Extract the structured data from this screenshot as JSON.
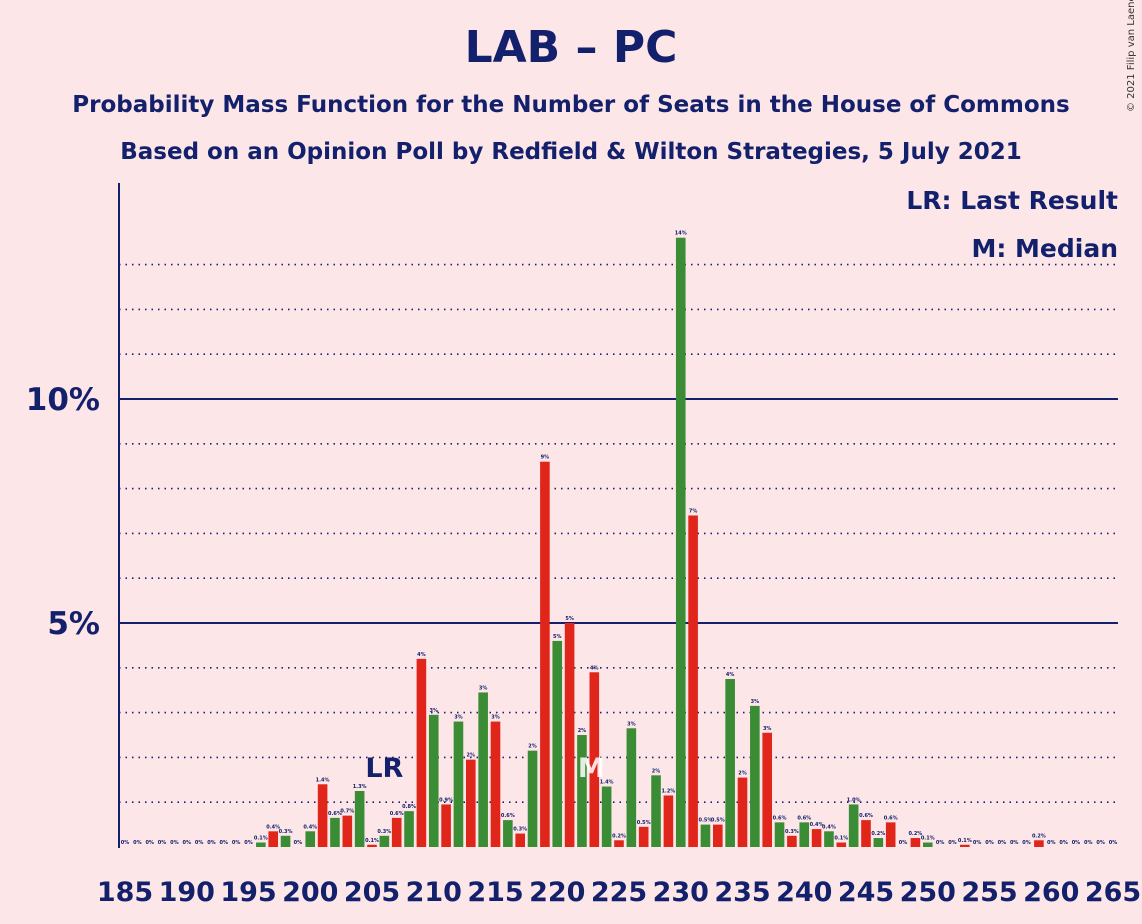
{
  "title": "LAB – PC",
  "subtitle_1": "Probability Mass Function for the Number of Seats in the House of Commons",
  "subtitle_2": "Based on an Opinion Poll by Redfield & Wilton Strategies, 5 July 2021",
  "copyright": "© 2021 Filip van Laenen",
  "legend": {
    "last_result": "LR: Last Result",
    "median": "M: Median"
  },
  "colors": {
    "background": "#fde6e8",
    "text": "#13206b",
    "bar_red": "#e0251b",
    "bar_green": "#3a8c35"
  },
  "chart_data": {
    "type": "bar",
    "x": [
      185,
      186,
      187,
      188,
      189,
      190,
      191,
      192,
      193,
      194,
      195,
      196,
      197,
      198,
      199,
      200,
      201,
      202,
      203,
      204,
      205,
      206,
      207,
      208,
      209,
      210,
      211,
      212,
      213,
      214,
      215,
      216,
      217,
      218,
      219,
      220,
      221,
      222,
      223,
      224,
      225,
      226,
      227,
      228,
      229,
      230,
      231,
      232,
      233,
      234,
      235,
      236,
      237,
      238,
      239,
      240,
      241,
      242,
      243,
      244,
      245,
      246,
      247,
      248,
      249,
      250,
      251,
      252,
      253,
      254,
      255,
      256,
      257,
      258,
      259,
      260,
      261,
      262,
      263,
      264,
      265
    ],
    "values": [
      0,
      0,
      0,
      0,
      0,
      0,
      0,
      0,
      0,
      0,
      0,
      0.1,
      0.35,
      0.25,
      0,
      0.35,
      1.4,
      0.65,
      0.7,
      1.25,
      0.05,
      0.25,
      0.65,
      0.8,
      4.2,
      2.95,
      0.95,
      2.8,
      1.95,
      3.45,
      2.8,
      0.6,
      0.3,
      2.15,
      8.6,
      4.6,
      5.0,
      2.5,
      3.9,
      1.35,
      0.15,
      2.65,
      0.45,
      1.6,
      1.15,
      13.6,
      7.4,
      0.5,
      0.5,
      3.75,
      1.55,
      3.15,
      2.55,
      0.55,
      0.25,
      0.55,
      0.4,
      0.35,
      0.1,
      0.95,
      0.6,
      0.2,
      0.55,
      0,
      0.2,
      0.1,
      0,
      0,
      0.05,
      0,
      0,
      0,
      0,
      0,
      0.15,
      0,
      0,
      0,
      0,
      0,
      0
    ],
    "value_labels": [
      "0%",
      "0%",
      "0%",
      "0%",
      "0%",
      "0%",
      "0%",
      "0%",
      "0%",
      "0%",
      "0%",
      "0.1%",
      "0.4%",
      "0.3%",
      "0%",
      "0.4%",
      "1.4%",
      "0.6%",
      "0.7%",
      "1.3%",
      "0.1%",
      "0.3%",
      "0.6%",
      "0.8%",
      "4%",
      "3%",
      "0.9%",
      "3%",
      "2%",
      "3%",
      "3%",
      "0.6%",
      "0.3%",
      "2%",
      "9%",
      "5%",
      "5%",
      "2%",
      "4%",
      "1.4%",
      "0.2%",
      "3%",
      "0.5%",
      "2%",
      "1.2%",
      "14%",
      "7%",
      "0.5%",
      "0.5%",
      "4%",
      "2%",
      "3%",
      "3%",
      "0.6%",
      "0.3%",
      "0.6%",
      "0.4%",
      "0.4%",
      "0.1%",
      "1.0%",
      "0.6%",
      "0.2%",
      "0.6%",
      "0%",
      "0.2%",
      "0.1%",
      "0%",
      "0%",
      "0.1%",
      "0%",
      "0%",
      "0%",
      "0%",
      "0%",
      "0.2%",
      "0%",
      "0%",
      "0%",
      "0%",
      "0%",
      "0%"
    ],
    "x_tick_labels": [
      "185",
      "190",
      "195",
      "200",
      "205",
      "210",
      "215",
      "220",
      "225",
      "230",
      "235",
      "240",
      "245",
      "250",
      "255",
      "260",
      "265"
    ],
    "y_tick_labels": [
      "5%",
      "10%"
    ],
    "ylim": [
      0,
      14.8
    ],
    "gridlines": "dotted every 1%, solid at 5% and 10%",
    "last_result_seat": 206,
    "last_result_label": "LR",
    "median_seat": 223,
    "median_label": "M"
  }
}
